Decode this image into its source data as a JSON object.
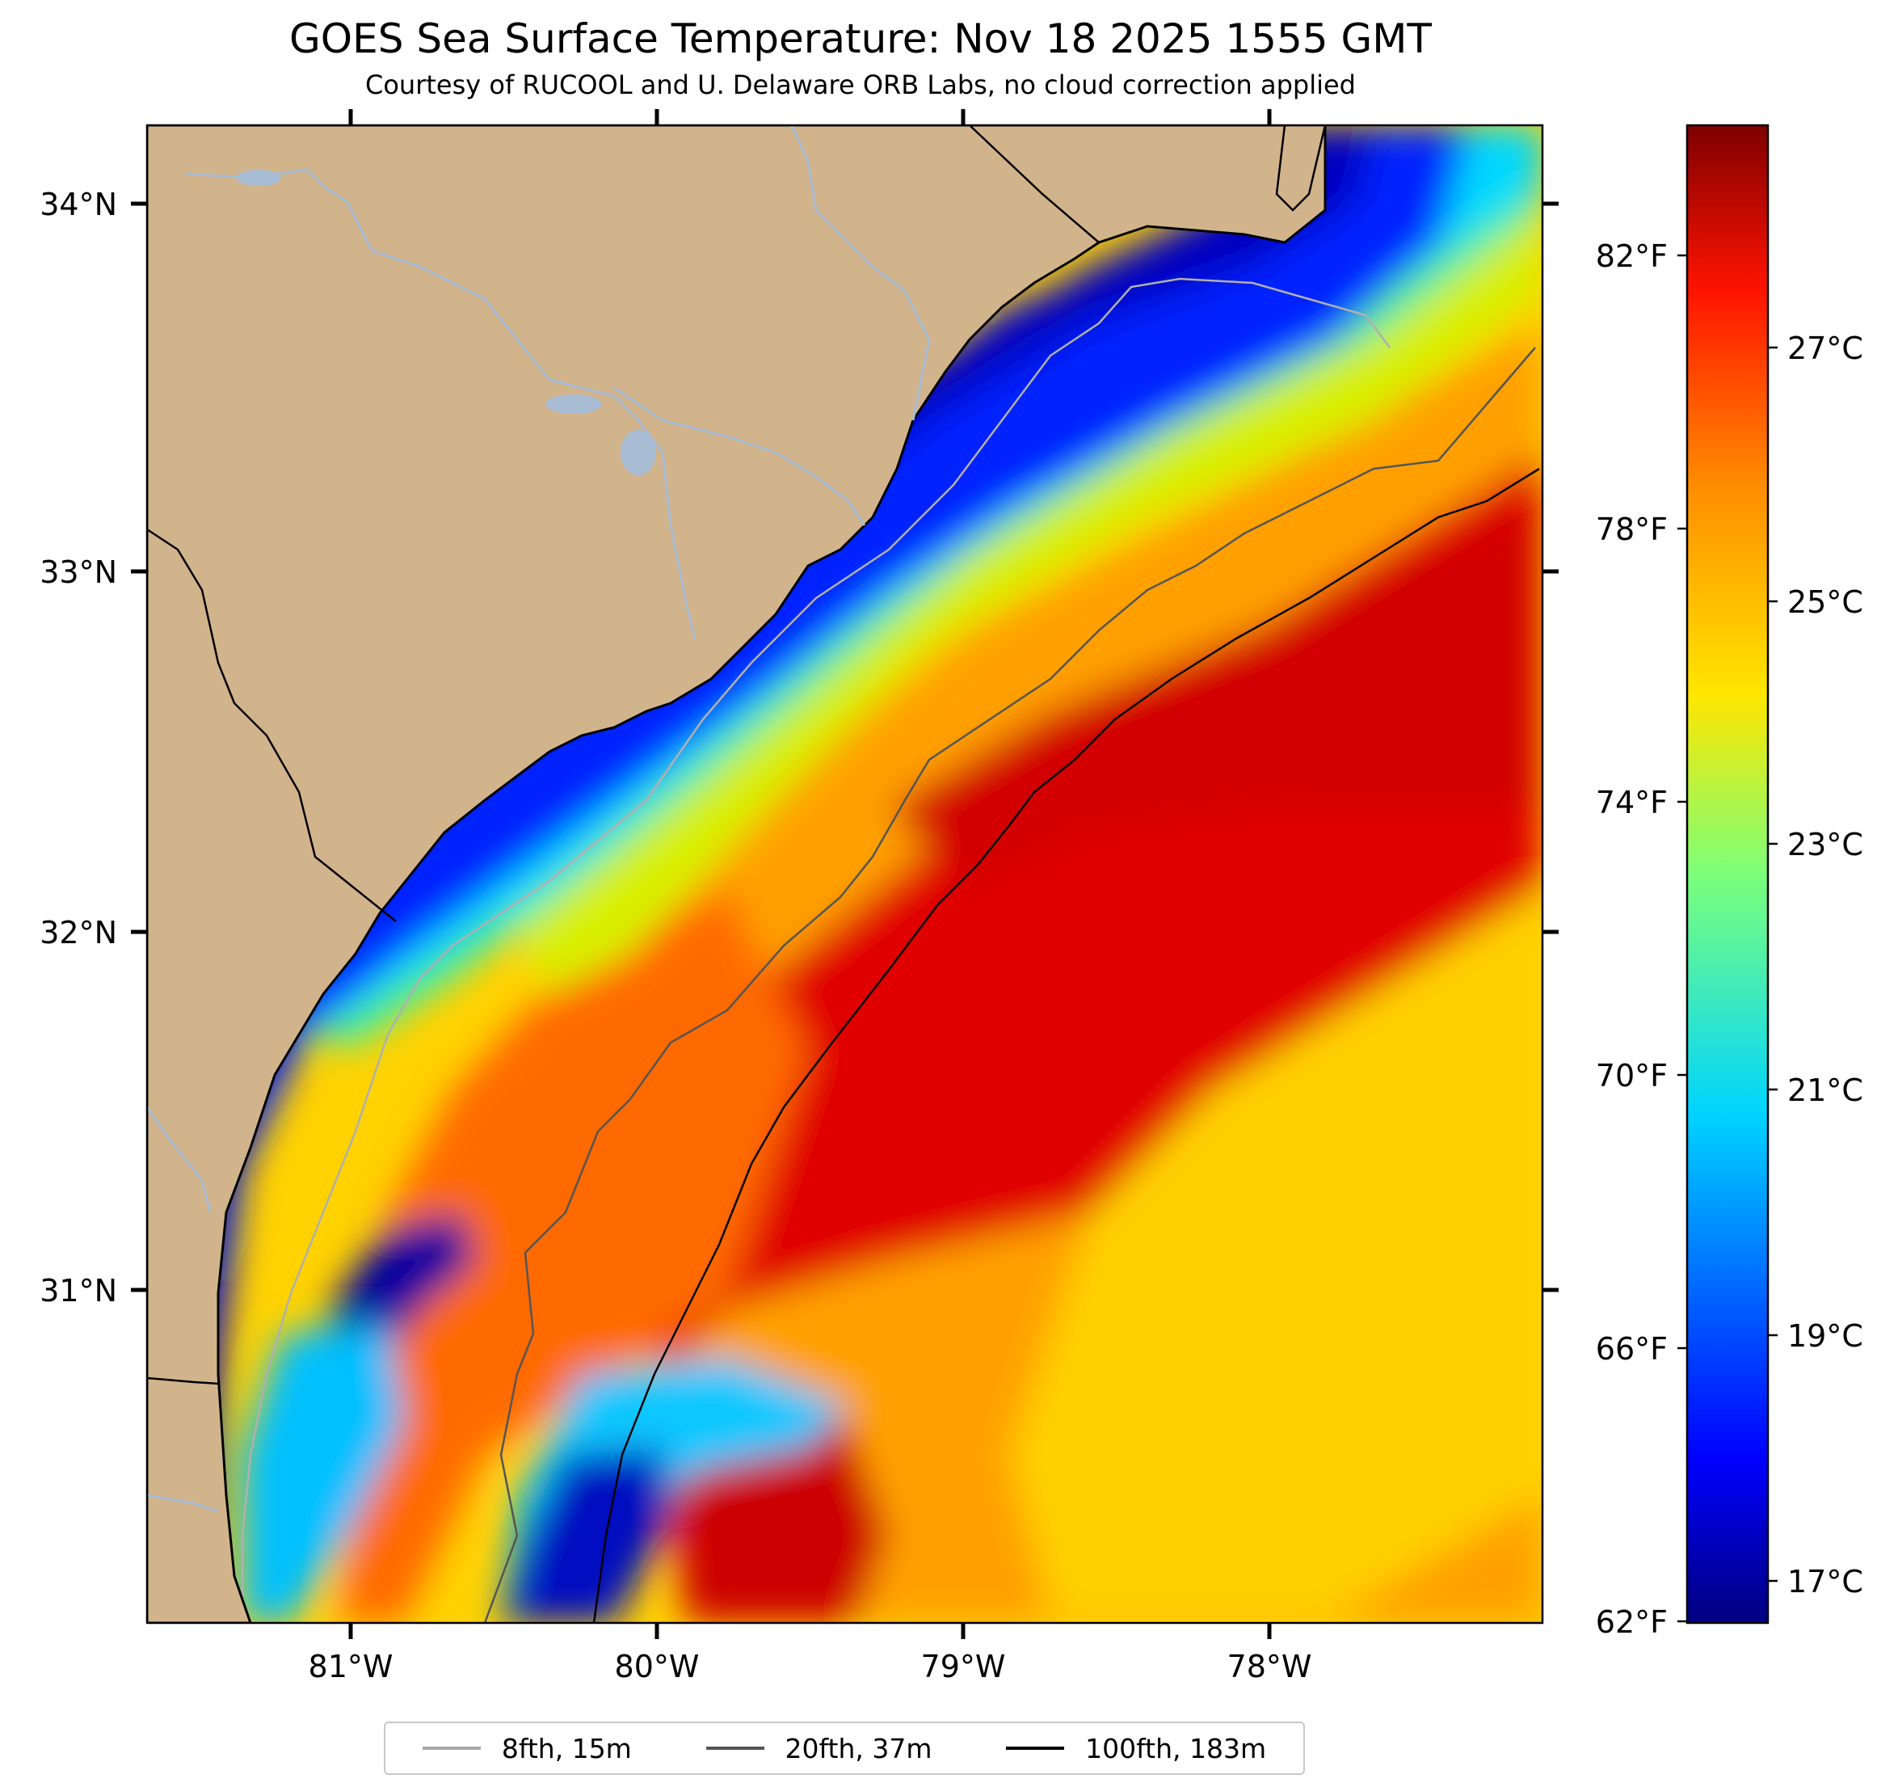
{
  "title": "GOES Sea Surface Temperature: Nov 18 2025 1555 GMT",
  "subtitle": "Courtesy of RUCOOL and U. Delaware ORB Labs, no cloud correction applied",
  "lat_labels": [
    "34°N",
    "33°N",
    "32°N",
    "31°N"
  ],
  "lon_labels": [
    "81°W",
    "80°W",
    "79°W",
    "78°W"
  ],
  "colorbar": {
    "fahrenheit_labels": [
      "82°F",
      "78°F",
      "74°F",
      "70°F",
      "66°F",
      "62°F"
    ],
    "celsius_labels": [
      "27°C",
      "25°C",
      "23°C",
      "21°C",
      "19°C",
      "17°C"
    ]
  },
  "legend": [
    {
      "label": "8fth, 15m",
      "color": "#a8a8a8"
    },
    {
      "label": "20fth, 37m",
      "color": "#555555"
    },
    {
      "label": "100fth, 183m",
      "color": "#000000"
    }
  ],
  "colors": {
    "land": "#d2b48c",
    "river": "#a8bcd4",
    "cold": "#00008b",
    "warm": "#d40000"
  }
}
